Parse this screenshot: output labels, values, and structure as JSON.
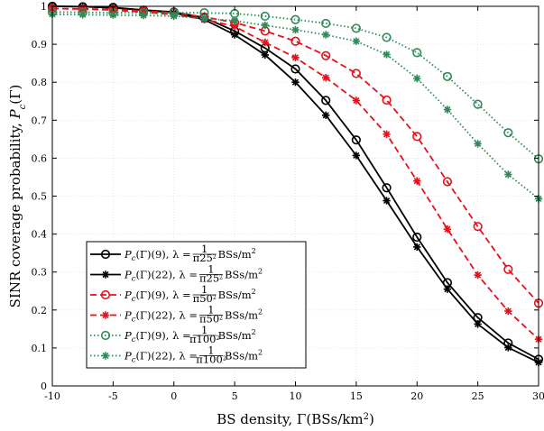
{
  "chart_data": {
    "type": "line",
    "xlabel": "BS density, Γ(BSs/km²)",
    "ylabel": "SINR coverage probability, Pc(Γ)",
    "xlim": [
      -10,
      30
    ],
    "ylim": [
      0,
      1
    ],
    "xticks": [
      -10,
      -5,
      0,
      5,
      10,
      15,
      20,
      25,
      30
    ],
    "yticks": [
      0,
      0.1,
      0.2,
      0.3,
      0.4,
      0.5,
      0.6,
      0.7,
      0.8,
      0.9,
      1
    ],
    "ytick_labels": [
      "0",
      "0.1",
      "0.2",
      "0.3",
      "0.4",
      "0.5",
      "0.6",
      "0.7",
      "0.8",
      "0.9",
      "1"
    ],
    "grid": true,
    "legend_position": "bottom-left",
    "x": [
      -10,
      -7.5,
      -5,
      -2.5,
      0,
      2.5,
      5,
      7.5,
      10,
      12.5,
      15,
      17.5,
      20,
      22.5,
      25,
      27.5,
      30
    ],
    "series": [
      {
        "name": "Pc(Γ)(9), λ = 1/π25² BSs/m²",
        "color": "#000000",
        "line": "solid",
        "marker": "circle",
        "values": [
          1.0,
          0.999,
          0.997,
          0.99,
          0.985,
          0.97,
          0.935,
          0.89,
          0.835,
          0.752,
          0.648,
          0.522,
          0.392,
          0.272,
          0.18,
          0.113,
          0.07
        ]
      },
      {
        "name": "Pc(Γ)(22), λ = 1/π25² BSs/m²",
        "color": "#000000",
        "line": "solid",
        "marker": "asterisk",
        "values": [
          1.0,
          0.999,
          0.996,
          0.99,
          0.983,
          0.965,
          0.925,
          0.872,
          0.8,
          0.713,
          0.607,
          0.488,
          0.366,
          0.255,
          0.163,
          0.101,
          0.062
        ]
      },
      {
        "name": "Pc(Γ)(9), λ = 1/π50² BSs/m²",
        "color": "#e8101a",
        "line": "dashed",
        "marker": "circle",
        "values": [
          0.994,
          0.993,
          0.992,
          0.988,
          0.983,
          0.972,
          0.957,
          0.935,
          0.908,
          0.87,
          0.823,
          0.753,
          0.657,
          0.538,
          0.42,
          0.307,
          0.218
        ]
      },
      {
        "name": "Pc(Γ)(22), λ = 1/π50² BSs/m²",
        "color": "#e8101a",
        "line": "dashed",
        "marker": "asterisk",
        "values": [
          0.994,
          0.993,
          0.99,
          0.985,
          0.978,
          0.966,
          0.947,
          0.905,
          0.865,
          0.812,
          0.752,
          0.663,
          0.54,
          0.413,
          0.292,
          0.197,
          0.123
        ]
      },
      {
        "name": "Pc(Γ)(9), λ = 1/π100² BSs/m²",
        "color": "#2e8b57",
        "line": "dotted",
        "marker": "circle",
        "values": [
          0.985,
          0.984,
          0.983,
          0.983,
          0.983,
          0.983,
          0.981,
          0.974,
          0.965,
          0.955,
          0.942,
          0.918,
          0.878,
          0.815,
          0.742,
          0.667,
          0.598
        ]
      },
      {
        "name": "Pc(Γ)(22), λ = 1/π100² BSs/m²",
        "color": "#2e8b57",
        "line": "dotted",
        "marker": "asterisk",
        "values": [
          0.979,
          0.978,
          0.977,
          0.976,
          0.974,
          0.968,
          0.962,
          0.95,
          0.938,
          0.925,
          0.908,
          0.873,
          0.81,
          0.728,
          0.638,
          0.557,
          0.493
        ]
      }
    ],
    "legend": [
      {
        "prefix": "P",
        "sub": "c",
        "mid": "(Γ)(9), λ = ",
        "den_pre": "π25",
        "sup": "2",
        "unit": "BSs/m",
        "unit_sup": "2"
      },
      {
        "prefix": "P",
        "sub": "c",
        "mid": "(Γ)(22), λ = ",
        "den_pre": "π25",
        "sup": "2",
        "unit": "BSs/m",
        "unit_sup": "2"
      },
      {
        "prefix": "P",
        "sub": "c",
        "mid": "(Γ)(9), λ = ",
        "den_pre": "π50",
        "sup": "2",
        "unit": "BSs/m",
        "unit_sup": "2"
      },
      {
        "prefix": "P",
        "sub": "c",
        "mid": "(Γ)(22), λ = ",
        "den_pre": "π50",
        "sup": "2",
        "unit": "BSs/m",
        "unit_sup": "2"
      },
      {
        "prefix": "P",
        "sub": "c",
        "mid": "(Γ)(9), λ = ",
        "den_pre": "π100",
        "sup": "2",
        "unit": "BSs/m",
        "unit_sup": "2"
      },
      {
        "prefix": "P",
        "sub": "c",
        "mid": "(Γ)(22), λ = ",
        "den_pre": "π100",
        "sup": "2",
        "unit": "BSs/m",
        "unit_sup": "2"
      }
    ],
    "frac_numerator": "1",
    "xlabel_parts": {
      "main": "BS density, Γ(BSs/km",
      "sup": "2",
      "end": ")"
    },
    "ylabel_parts": {
      "main": "SINR coverage probability, ",
      "sym": "P",
      "sub": "c",
      "end": "(Γ)"
    }
  }
}
